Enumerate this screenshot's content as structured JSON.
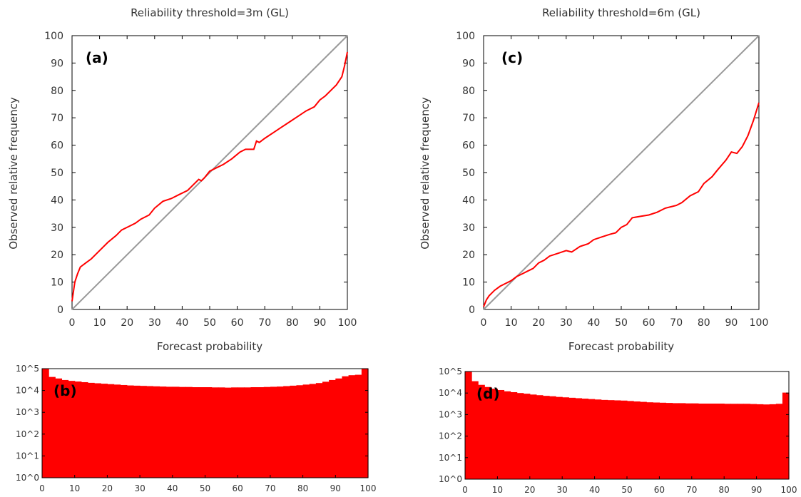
{
  "chart_data": [
    {
      "id": "a",
      "type": "line",
      "panel_label": "(a)",
      "title": "Reliability threshold=3m (GL)",
      "xlabel": "Forecast probability",
      "ylabel": "Observed relative frequency",
      "xlim": [
        0,
        100
      ],
      "ylim": [
        0,
        100
      ],
      "xticks": [
        "0",
        "10",
        "20",
        "30",
        "40",
        "50",
        "60",
        "70",
        "80",
        "90",
        "100"
      ],
      "yticks": [
        "0",
        "10",
        "20",
        "30",
        "40",
        "50",
        "60",
        "70",
        "80",
        "90",
        "100"
      ],
      "series": [
        {
          "kind": "diagonal",
          "color": "#999999",
          "x": [
            0,
            100
          ],
          "y": [
            0,
            100
          ]
        },
        {
          "kind": "reliability",
          "color": "#ff0000",
          "x": [
            0,
            1,
            2,
            3,
            5,
            7,
            10,
            13,
            16,
            18,
            21,
            23,
            25,
            28,
            30,
            33,
            36,
            39,
            42,
            44,
            46,
            47,
            48,
            50,
            52,
            55,
            58,
            61,
            63,
            66,
            67,
            68,
            70,
            73,
            76,
            79,
            82,
            85,
            88,
            90,
            92,
            94,
            96,
            98,
            99,
            100
          ],
          "y": [
            3,
            10,
            13,
            15.5,
            17,
            18.5,
            21.5,
            24.5,
            27,
            29,
            30.5,
            31.5,
            33,
            34.5,
            37,
            39.5,
            40.5,
            42,
            43.5,
            45.5,
            47.5,
            47,
            48,
            50.5,
            51.5,
            53,
            55,
            57.5,
            58.5,
            58.5,
            61.5,
            61,
            62.5,
            64.5,
            66.5,
            68.5,
            70.5,
            72.5,
            74,
            76.5,
            78,
            80,
            82,
            85,
            89,
            94
          ]
        }
      ]
    },
    {
      "id": "b",
      "type": "bar",
      "panel_label": "(b)",
      "scale": "log10",
      "xlim": [
        0,
        100
      ],
      "ylim_exp": [
        0,
        5
      ],
      "xticks": [
        "0",
        "10",
        "20",
        "30",
        "40",
        "50",
        "60",
        "70",
        "80",
        "90",
        "100"
      ],
      "yticks": [
        "10^0",
        "10^1",
        "10^2",
        "10^3",
        "10^4",
        "10^5"
      ],
      "color": "#ff0000",
      "log10_values": [
        5.0,
        4.62,
        4.55,
        4.48,
        4.44,
        4.41,
        4.38,
        4.35,
        4.33,
        4.31,
        4.29,
        4.27,
        4.25,
        4.23,
        4.22,
        4.21,
        4.2,
        4.19,
        4.18,
        4.17,
        4.17,
        4.16,
        4.16,
        4.15,
        4.15,
        4.15,
        4.14,
        4.14,
        4.13,
        4.14,
        4.14,
        4.14,
        4.15,
        4.15,
        4.16,
        4.17,
        4.18,
        4.2,
        4.22,
        4.24,
        4.27,
        4.3,
        4.34,
        4.4,
        4.48,
        4.55,
        4.65,
        4.7,
        4.72,
        5.0
      ]
    },
    {
      "id": "c",
      "type": "line",
      "panel_label": "(c)",
      "title": "Reliability threshold=6m (GL)",
      "xlabel": "Forecast probability",
      "ylabel": "Observed relative frequency",
      "xlim": [
        0,
        100
      ],
      "ylim": [
        0,
        100
      ],
      "xticks": [
        "0",
        "10",
        "20",
        "30",
        "40",
        "50",
        "60",
        "70",
        "80",
        "90",
        "100"
      ],
      "yticks": [
        "0",
        "10",
        "20",
        "30",
        "40",
        "50",
        "60",
        "70",
        "80",
        "90",
        "100"
      ],
      "series": [
        {
          "kind": "diagonal",
          "color": "#999999",
          "x": [
            0,
            100
          ],
          "y": [
            0,
            100
          ]
        },
        {
          "kind": "reliability",
          "color": "#ff0000",
          "x": [
            0,
            1,
            2,
            4,
            6,
            8,
            10,
            12,
            14,
            16,
            18,
            20,
            22,
            24,
            27,
            30,
            32,
            35,
            38,
            40,
            43,
            46,
            48,
            50,
            52,
            54,
            57,
            60,
            63,
            66,
            68,
            70,
            72,
            75,
            78,
            80,
            83,
            85,
            88,
            90,
            92,
            94,
            96,
            98,
            100
          ],
          "y": [
            1,
            3.5,
            5,
            7,
            8.5,
            9.5,
            10.5,
            12,
            13,
            14,
            15,
            17,
            18,
            19.5,
            20.5,
            21.5,
            21,
            23,
            24,
            25.5,
            26.5,
            27.5,
            28,
            30,
            31,
            33.5,
            34,
            34.5,
            35.5,
            37,
            37.5,
            38,
            39,
            41.5,
            43,
            46,
            48.5,
            51,
            54.5,
            57.5,
            57,
            59.5,
            63.5,
            69,
            75.5
          ]
        }
      ]
    },
    {
      "id": "d",
      "type": "bar",
      "panel_label": "(d)",
      "scale": "log10",
      "xlim": [
        0,
        100
      ],
      "ylim_exp": [
        0,
        5
      ],
      "xticks": [
        "0",
        "10",
        "20",
        "30",
        "40",
        "50",
        "60",
        "70",
        "80",
        "90",
        "100"
      ],
      "yticks": [
        "10^0",
        "10^1",
        "10^2",
        "10^3",
        "10^4",
        "10^5"
      ],
      "color": "#ff0000",
      "log10_values": [
        5.0,
        4.55,
        4.38,
        4.28,
        4.2,
        4.14,
        4.08,
        4.04,
        4.0,
        3.97,
        3.93,
        3.9,
        3.87,
        3.85,
        3.82,
        3.8,
        3.78,
        3.76,
        3.74,
        3.72,
        3.7,
        3.68,
        3.67,
        3.66,
        3.65,
        3.63,
        3.61,
        3.59,
        3.57,
        3.56,
        3.55,
        3.54,
        3.53,
        3.53,
        3.52,
        3.52,
        3.51,
        3.51,
        3.51,
        3.51,
        3.5,
        3.5,
        3.5,
        3.5,
        3.49,
        3.48,
        3.47,
        3.48,
        3.5,
        4.02
      ]
    }
  ]
}
